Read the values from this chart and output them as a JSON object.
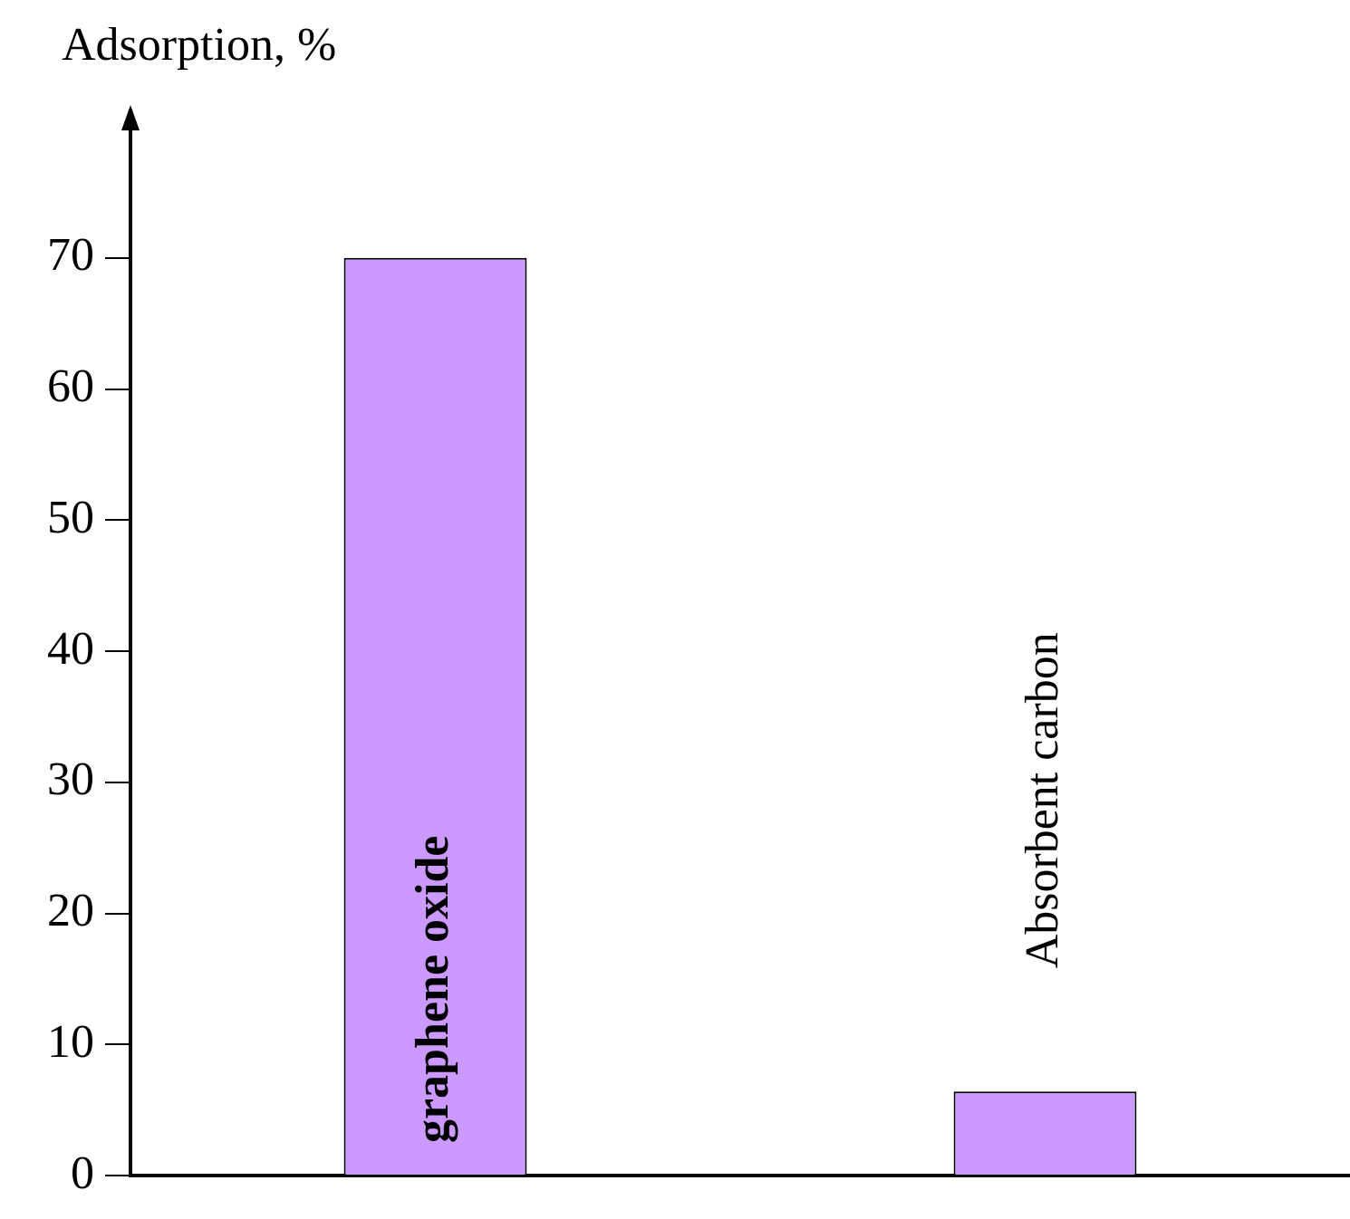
{
  "chart_data": {
    "type": "bar",
    "ylabel": "Adsorption, %",
    "categories": [
      "graphene oxide",
      "Absorbent carbon"
    ],
    "values": [
      70,
      6.4
    ],
    "color": "#cc99ff",
    "ylim": [
      0,
      80
    ],
    "yticks": [
      0,
      10,
      20,
      30,
      40,
      50,
      60,
      70
    ]
  }
}
